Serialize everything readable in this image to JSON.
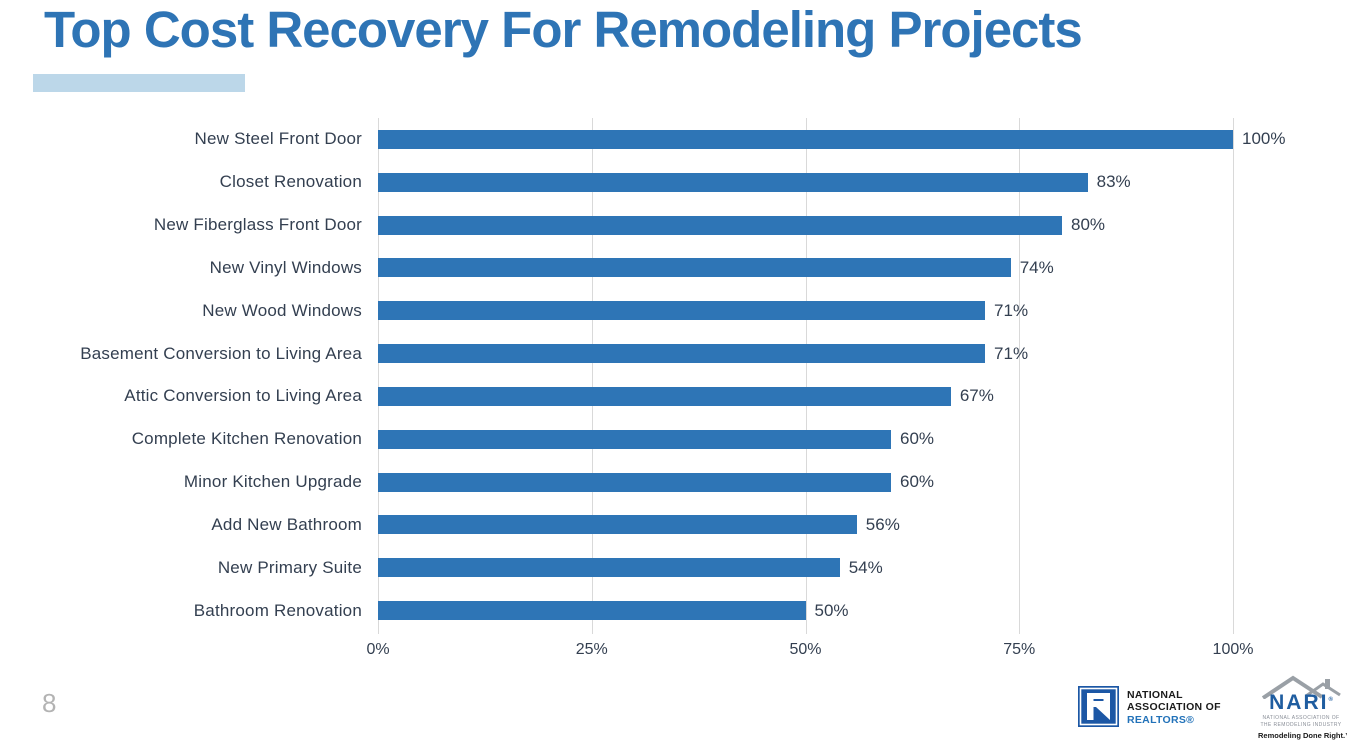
{
  "header": {
    "title": "Top Cost Recovery For Remodeling Projects"
  },
  "chart_data": {
    "type": "bar",
    "orientation": "horizontal",
    "title": "Top Cost Recovery For Remodeling Projects",
    "categories": [
      "New Steel Front Door",
      "Closet Renovation",
      "New Fiberglass Front Door",
      "New Vinyl Windows",
      "New Wood Windows",
      "Basement Conversion to Living Area",
      "Attic Conversion to Living Area",
      "Complete Kitchen Renovation",
      "Minor Kitchen Upgrade",
      "Add New Bathroom",
      "New Primary Suite",
      "Bathroom Renovation"
    ],
    "values": [
      100,
      83,
      80,
      74,
      71,
      71,
      67,
      60,
      60,
      56,
      54,
      50
    ],
    "value_labels": [
      "100%",
      "83%",
      "80%",
      "74%",
      "71%",
      "71%",
      "67%",
      "60%",
      "60%",
      "56%",
      "54%",
      "50%"
    ],
    "x_ticks": [
      "0%",
      "25%",
      "50%",
      "75%",
      "100%"
    ],
    "xlim": [
      0,
      100
    ],
    "grid": "vertical",
    "legend": "none",
    "bar_color": "#2E75B6",
    "gridline_color": "#D9D9D9"
  },
  "footer": {
    "page_number": "8",
    "nar_logo": {
      "line1": "NATIONAL",
      "line2": "ASSOCIATION OF",
      "line3": "REALTORS®"
    },
    "nari_logo": {
      "name": "NARI",
      "reg": "®",
      "sub1": "NATIONAL ASSOCIATION OF",
      "sub2": "THE REMODELING INDUSTRY",
      "tagline": "Remodeling Done Right.™"
    }
  },
  "colors": {
    "title": "#2E74B5",
    "accent_bar": "#BCD7E9",
    "bar": "#2E75B6",
    "label_text": "#333F50",
    "gridline": "#D9D9D9",
    "page_number": "#B3B3B3",
    "nar_blue": "#1C57A5",
    "nari_blue": "#1F5DA0",
    "roof_gray": "#9AA0A6"
  }
}
